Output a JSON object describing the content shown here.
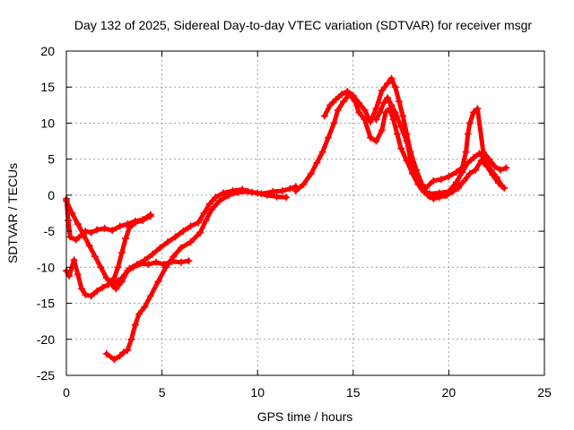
{
  "chart_data": {
    "type": "scatter",
    "title": "Day 132 of 2025, Sidereal Day-to-day VTEC variation (SDTVAR) for receiver msgr",
    "xlabel": "GPS time / hours",
    "ylabel": "SDTVAR / TECUs",
    "xlim": [
      0,
      25
    ],
    "ylim": [
      -25,
      20
    ],
    "xticks": [
      "0",
      "5",
      "10",
      "15",
      "20",
      "25"
    ],
    "yticks": [
      "20",
      "15",
      "10",
      "5",
      "0",
      "-5",
      "-10",
      "-15",
      "-20",
      "-25"
    ],
    "grid": true,
    "marker": "plus",
    "color": "#ff0000",
    "series": [
      {
        "values": [
          [
            0.0,
            -0.5
          ],
          [
            0.1,
            -3.5
          ],
          [
            0.2,
            -5.8
          ],
          [
            0.5,
            -6.2
          ],
          [
            0.8,
            -5.5
          ],
          [
            1.0,
            -5.0
          ],
          [
            1.3,
            -5.2
          ],
          [
            1.6,
            -4.8
          ],
          [
            2.0,
            -4.6
          ],
          [
            2.4,
            -4.9
          ],
          [
            2.8,
            -4.3
          ],
          [
            3.2,
            -4.0
          ],
          [
            3.6,
            -3.6
          ],
          [
            4.0,
            -3.4
          ],
          [
            4.4,
            -2.7
          ]
        ]
      },
      {
        "values": [
          [
            0.0,
            -0.8
          ],
          [
            0.3,
            -2.5
          ],
          [
            0.6,
            -4.0
          ],
          [
            0.9,
            -5.5
          ],
          [
            1.2,
            -7.0
          ],
          [
            1.5,
            -8.5
          ],
          [
            1.8,
            -10.0
          ],
          [
            2.1,
            -11.5
          ],
          [
            2.4,
            -12.5
          ],
          [
            2.6,
            -13.0
          ],
          [
            2.9,
            -12.0
          ],
          [
            3.2,
            -10.5
          ],
          [
            3.5,
            -10.0
          ],
          [
            3.9,
            -9.5
          ],
          [
            4.3,
            -9.6
          ],
          [
            4.7,
            -9.3
          ],
          [
            5.1,
            -9.6
          ],
          [
            5.5,
            -9.2
          ],
          [
            6.0,
            -9.3
          ],
          [
            6.4,
            -9.1
          ]
        ]
      },
      {
        "values": [
          [
            0.0,
            -10.5
          ],
          [
            0.15,
            -11.2
          ],
          [
            0.4,
            -9.0
          ],
          [
            0.6,
            -11.0
          ],
          [
            0.8,
            -13.0
          ],
          [
            1.0,
            -13.8
          ],
          [
            1.3,
            -14.0
          ],
          [
            1.6,
            -13.3
          ],
          [
            1.9,
            -12.8
          ],
          [
            2.2,
            -12.4
          ],
          [
            2.5,
            -11.5
          ],
          [
            2.7,
            -10.0
          ],
          [
            2.9,
            -8.0
          ],
          [
            3.1,
            -6.0
          ],
          [
            3.3,
            -4.5
          ],
          [
            3.6,
            -3.8
          ],
          [
            4.0,
            -3.5
          ],
          [
            4.4,
            -2.9
          ]
        ]
      },
      {
        "values": [
          [
            2.1,
            -22.0
          ],
          [
            2.5,
            -22.8
          ],
          [
            2.8,
            -22.3
          ],
          [
            3.0,
            -21.8
          ],
          [
            3.2,
            -21.5
          ],
          [
            3.4,
            -20.0
          ],
          [
            3.6,
            -18.0
          ],
          [
            3.8,
            -16.5
          ],
          [
            4.1,
            -15.5
          ],
          [
            4.4,
            -14.0
          ],
          [
            4.8,
            -12.0
          ],
          [
            5.2,
            -10.0
          ],
          [
            5.6,
            -8.5
          ],
          [
            6.0,
            -7.3
          ],
          [
            6.5,
            -6.5
          ],
          [
            7.0,
            -5.2
          ],
          [
            7.3,
            -3.5
          ],
          [
            7.6,
            -2.0
          ],
          [
            8.0,
            -0.8
          ],
          [
            8.5,
            0.0
          ],
          [
            9.0,
            0.4
          ],
          [
            9.5,
            0.5
          ],
          [
            10.0,
            0.3
          ],
          [
            10.5,
            0.0
          ],
          [
            11.0,
            -0.2
          ],
          [
            11.5,
            -0.3
          ]
        ]
      },
      {
        "values": [
          [
            2.5,
            -12.3
          ],
          [
            2.9,
            -11.5
          ],
          [
            3.3,
            -10.2
          ],
          [
            3.7,
            -9.6
          ],
          [
            4.1,
            -9.0
          ],
          [
            4.5,
            -8.2
          ],
          [
            4.9,
            -7.3
          ],
          [
            5.3,
            -6.5
          ],
          [
            5.7,
            -5.8
          ],
          [
            6.1,
            -5.0
          ],
          [
            6.5,
            -4.3
          ],
          [
            6.9,
            -3.8
          ],
          [
            7.2,
            -2.5
          ],
          [
            7.5,
            -1.2
          ],
          [
            7.8,
            -0.3
          ],
          [
            8.2,
            0.3
          ],
          [
            8.7,
            0.6
          ],
          [
            9.2,
            0.8
          ],
          [
            9.7,
            0.4
          ],
          [
            10.2,
            0.2
          ],
          [
            10.8,
            0.5
          ],
          [
            11.3,
            0.6
          ],
          [
            11.7,
            0.9
          ],
          [
            12.0,
            1.2
          ]
        ]
      },
      {
        "values": [
          [
            12.0,
            0.6
          ],
          [
            12.4,
            1.5
          ],
          [
            12.8,
            3.0
          ],
          [
            13.1,
            4.5
          ],
          [
            13.4,
            6.0
          ],
          [
            13.7,
            8.0
          ],
          [
            14.0,
            10.0
          ],
          [
            14.2,
            11.8
          ],
          [
            14.5,
            13.0
          ],
          [
            14.8,
            14.0
          ],
          [
            15.1,
            13.0
          ],
          [
            15.3,
            11.5
          ],
          [
            15.6,
            10.5
          ],
          [
            15.9,
            8.0
          ],
          [
            16.2,
            7.5
          ],
          [
            16.5,
            9.0
          ],
          [
            16.7,
            11.5
          ],
          [
            16.9,
            12.0
          ],
          [
            17.1,
            10.5
          ],
          [
            17.3,
            8.5
          ],
          [
            17.5,
            6.5
          ],
          [
            17.8,
            4.8
          ],
          [
            18.1,
            3.0
          ],
          [
            18.4,
            1.5
          ],
          [
            18.7,
            0.5
          ],
          [
            19.0,
            0.2
          ],
          [
            19.5,
            0.3
          ],
          [
            20.0,
            0.5
          ],
          [
            20.4,
            1.8
          ],
          [
            20.7,
            3.2
          ],
          [
            21.0,
            4.5
          ],
          [
            21.3,
            5.2
          ],
          [
            21.6,
            5.8
          ],
          [
            21.9,
            5.0
          ],
          [
            22.2,
            3.5
          ],
          [
            22.5,
            2.5
          ],
          [
            22.8,
            1.2
          ]
        ]
      },
      {
        "values": [
          [
            13.5,
            11.0
          ],
          [
            13.8,
            12.5
          ],
          [
            14.1,
            13.3
          ],
          [
            14.4,
            14.0
          ],
          [
            14.7,
            14.4
          ],
          [
            15.0,
            13.8
          ],
          [
            15.3,
            12.8
          ],
          [
            15.6,
            11.8
          ],
          [
            15.9,
            10.2
          ],
          [
            16.2,
            12.0
          ],
          [
            16.5,
            14.5
          ],
          [
            16.8,
            15.5
          ],
          [
            17.0,
            16.2
          ],
          [
            17.2,
            15.0
          ],
          [
            17.4,
            13.0
          ],
          [
            17.6,
            11.0
          ],
          [
            17.8,
            8.5
          ],
          [
            18.0,
            6.0
          ],
          [
            18.3,
            3.5
          ],
          [
            18.6,
            1.5
          ],
          [
            18.9,
            0.0
          ],
          [
            19.2,
            -0.5
          ],
          [
            19.5,
            -0.3
          ],
          [
            19.9,
            0.0
          ],
          [
            20.2,
            0.5
          ],
          [
            20.5,
            1.0
          ],
          [
            20.8,
            2.0
          ],
          [
            21.1,
            3.0
          ],
          [
            21.4,
            3.5
          ],
          [
            21.7,
            4.8
          ],
          [
            22.0,
            4.0
          ],
          [
            22.3,
            2.8
          ],
          [
            22.6,
            1.7
          ],
          [
            22.9,
            1.0
          ]
        ]
      },
      {
        "values": [
          [
            18.8,
            1.0
          ],
          [
            19.2,
            2.0
          ],
          [
            19.6,
            2.2
          ],
          [
            20.0,
            2.6
          ],
          [
            20.4,
            3.2
          ],
          [
            20.7,
            3.8
          ],
          [
            20.9,
            6.0
          ],
          [
            21.0,
            8.5
          ],
          [
            21.1,
            10.0
          ],
          [
            21.3,
            11.5
          ],
          [
            21.5,
            12.0
          ],
          [
            21.8,
            6.0
          ],
          [
            22.1,
            5.0
          ],
          [
            22.4,
            4.0
          ],
          [
            22.7,
            3.5
          ],
          [
            23.0,
            3.8
          ]
        ]
      },
      {
        "values": [
          [
            16.2,
            10.5
          ],
          [
            16.4,
            11.5
          ],
          [
            16.6,
            12.8
          ],
          [
            16.8,
            13.5
          ],
          [
            17.0,
            12.5
          ],
          [
            17.2,
            11.5
          ],
          [
            17.5,
            9.5
          ],
          [
            17.8,
            7.5
          ],
          [
            18.0,
            5.0
          ],
          [
            18.3,
            2.5
          ],
          [
            18.6,
            0.8
          ],
          [
            19.0,
            -0.2
          ],
          [
            19.4,
            0.1
          ],
          [
            19.8,
            0.0
          ],
          [
            20.2,
            0.8
          ],
          [
            20.5,
            1.5
          ]
        ]
      }
    ]
  }
}
